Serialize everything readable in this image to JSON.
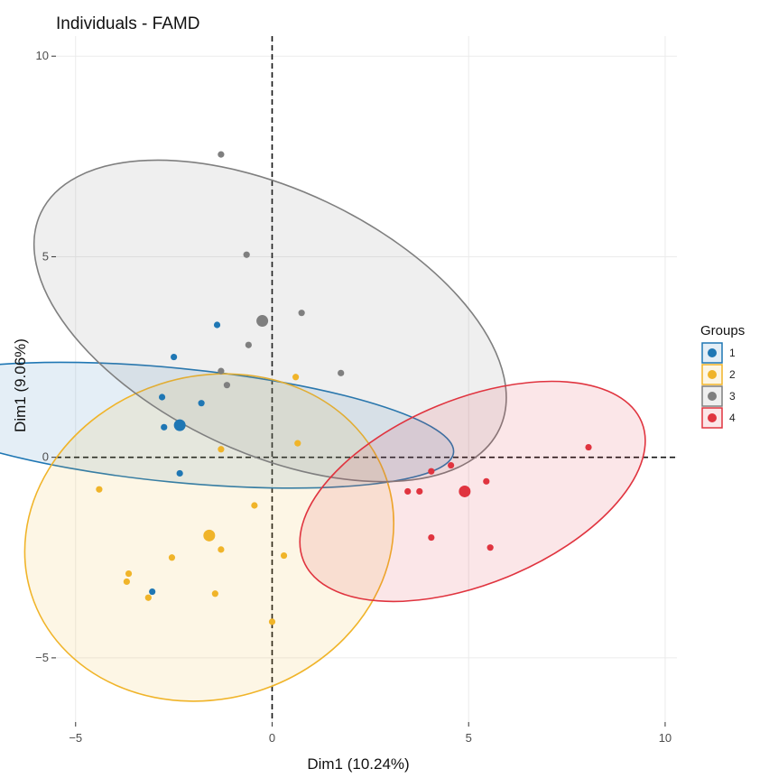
{
  "chart_data": {
    "type": "scatter",
    "title": "Individuals - FAMD",
    "xlabel": "Dim1 (10.24%)",
    "ylabel": "Dim1 (9.06%)",
    "xlim": [
      -5.5,
      10.3
    ],
    "ylim": [
      -6.6,
      10.5
    ],
    "x_ticks": [
      -5,
      0,
      5,
      10
    ],
    "y_ticks": [
      -5,
      0,
      5,
      10
    ],
    "grid": true,
    "reference_lines": {
      "x": 0,
      "y": 0
    },
    "legend": {
      "title": "Groups",
      "position": "right"
    },
    "series": [
      {
        "name": "1",
        "color": "#1f77b4",
        "points": [
          [
            -1.4,
            3.3
          ],
          [
            -2.5,
            2.5
          ],
          [
            -2.8,
            1.5
          ],
          [
            -1.8,
            1.35
          ],
          [
            -2.75,
            0.75
          ],
          [
            -2.35,
            -0.4
          ],
          [
            -3.05,
            -3.35
          ]
        ],
        "center": [
          -2.35,
          0.8
        ],
        "ellipse": {
          "center": [
            -2.45,
            0.8
          ],
          "rx": 1.45,
          "ry": 7.1,
          "angle_deg": 84.4
        }
      },
      {
        "name": "2",
        "color": "#f0b429",
        "points": [
          [
            -1.3,
            0.2
          ],
          [
            -4.4,
            -0.8
          ],
          [
            -0.45,
            -1.2
          ],
          [
            -1.3,
            -2.3
          ],
          [
            -2.55,
            -2.5
          ],
          [
            -3.65,
            -2.9
          ],
          [
            -3.7,
            -3.1
          ],
          [
            -3.15,
            -3.5
          ],
          [
            -1.45,
            -3.4
          ],
          [
            0.3,
            -2.45
          ],
          [
            0.65,
            0.35
          ],
          [
            0.0,
            -4.1
          ],
          [
            0.6,
            2.0
          ]
        ],
        "center": [
          -1.6,
          -1.95
        ],
        "ellipse": {
          "center": [
            -1.6,
            -2.0
          ],
          "rx": 4.75,
          "ry": 4.1,
          "angle_deg": 17.7
        }
      },
      {
        "name": "3",
        "color": "#7f7f7f",
        "points": [
          [
            -1.3,
            7.55
          ],
          [
            -0.65,
            5.05
          ],
          [
            0.75,
            3.6
          ],
          [
            -0.6,
            2.8
          ],
          [
            -1.3,
            2.15
          ],
          [
            -1.15,
            1.8
          ],
          [
            1.75,
            2.1
          ]
        ],
        "center": [
          -0.25,
          3.4
        ],
        "ellipse": {
          "center": [
            -0.05,
            3.4
          ],
          "rx": 3.35,
          "ry": 6.45,
          "angle_deg": 64.8
        }
      },
      {
        "name": "4",
        "color": "#e0343f",
        "points": [
          [
            8.05,
            0.25
          ],
          [
            4.05,
            -0.35
          ],
          [
            4.55,
            -0.2
          ],
          [
            3.45,
            -0.85
          ],
          [
            3.75,
            -0.85
          ],
          [
            5.45,
            -0.6
          ],
          [
            4.05,
            -2.0
          ],
          [
            5.55,
            -2.25
          ]
        ],
        "center": [
          4.9,
          -0.85
        ],
        "ellipse": {
          "center": [
            5.1,
            -0.85
          ],
          "rx": 4.65,
          "ry": 2.35,
          "angle_deg": 22.3
        }
      }
    ]
  }
}
